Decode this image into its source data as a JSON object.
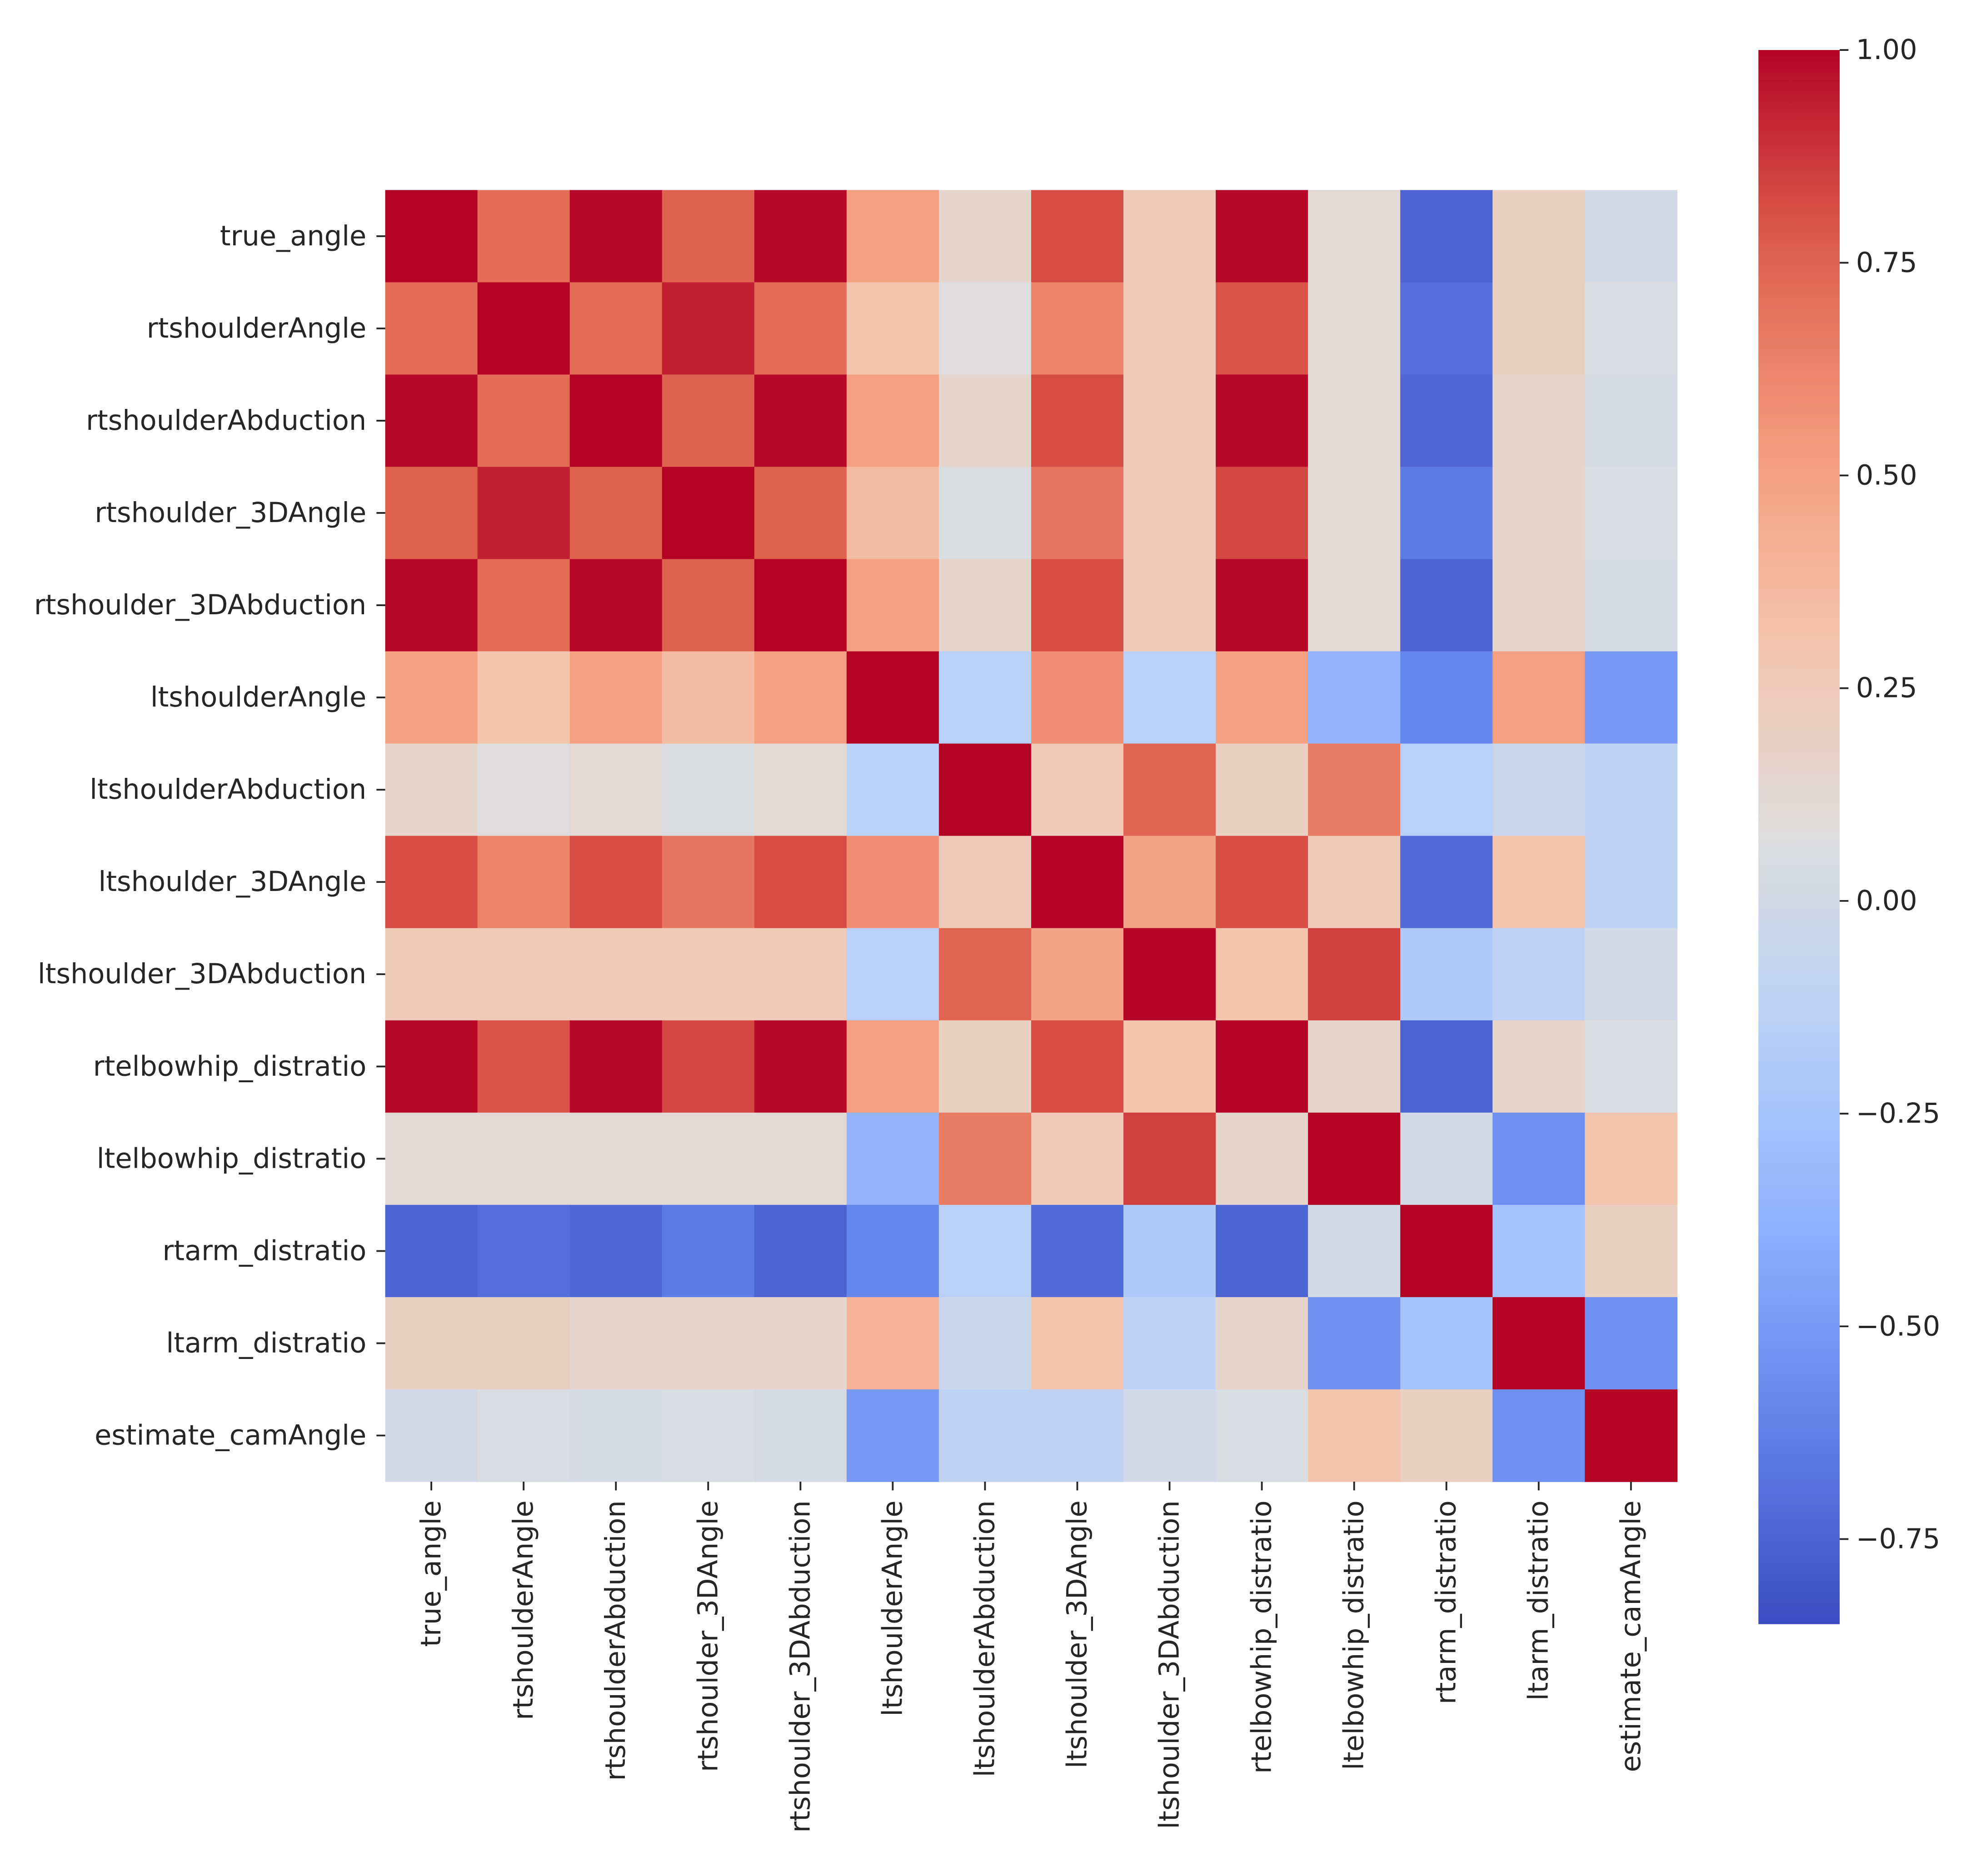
{
  "chart_data": {
    "type": "heatmap",
    "title": "",
    "xlabel": "",
    "ylabel": "",
    "colormap": "coolwarm",
    "variables": [
      "true_angle",
      "rtshoulderAngle",
      "rtshoulderAbduction",
      "rtshoulder_3DAngle",
      "rtshoulder_3DAbduction",
      "ltshoulderAngle",
      "ltshoulderAbduction",
      "ltshoulder_3DAngle",
      "ltshoulder_3DAbduction",
      "rtelbowhip_distratio",
      "ltelbowhip_distratio",
      "rtarm_distratio",
      "ltarm_distratio",
      "estimate_camAngle"
    ],
    "matrix": [
      [
        1.0,
        0.72,
        0.99,
        0.76,
        0.99,
        0.5,
        0.15,
        0.82,
        0.25,
        0.99,
        0.12,
        -0.75,
        0.2,
        0.0
      ],
      [
        0.72,
        1.0,
        0.72,
        0.93,
        0.72,
        0.3,
        0.08,
        0.63,
        0.25,
        0.8,
        0.12,
        -0.7,
        0.2,
        0.05
      ],
      [
        0.99,
        0.72,
        1.0,
        0.76,
        0.99,
        0.5,
        0.15,
        0.82,
        0.25,
        0.99,
        0.12,
        -0.73,
        0.15,
        0.03
      ],
      [
        0.76,
        0.93,
        0.76,
        1.0,
        0.76,
        0.35,
        0.06,
        0.68,
        0.25,
        0.83,
        0.12,
        -0.65,
        0.15,
        0.05
      ],
      [
        0.99,
        0.72,
        0.99,
        0.76,
        1.0,
        0.5,
        0.15,
        0.82,
        0.25,
        0.99,
        0.12,
        -0.75,
        0.15,
        0.03
      ],
      [
        0.5,
        0.3,
        0.5,
        0.35,
        0.5,
        1.0,
        -0.15,
        0.58,
        -0.15,
        0.5,
        -0.35,
        -0.6,
        0.5,
        -0.5
      ],
      [
        0.15,
        0.08,
        0.12,
        0.06,
        0.12,
        -0.15,
        1.0,
        0.25,
        0.75,
        0.2,
        0.66,
        -0.15,
        -0.05,
        -0.1
      ],
      [
        0.82,
        0.63,
        0.82,
        0.68,
        0.82,
        0.58,
        0.25,
        1.0,
        0.48,
        0.82,
        0.25,
        -0.72,
        0.3,
        -0.1
      ],
      [
        0.25,
        0.25,
        0.25,
        0.25,
        0.25,
        -0.15,
        0.75,
        0.48,
        1.0,
        0.3,
        0.85,
        -0.2,
        -0.12,
        0.0
      ],
      [
        0.99,
        0.8,
        0.99,
        0.83,
        0.99,
        0.5,
        0.2,
        0.82,
        0.3,
        1.0,
        0.15,
        -0.75,
        0.15,
        0.05
      ],
      [
        0.12,
        0.12,
        0.12,
        0.12,
        0.12,
        -0.35,
        0.66,
        0.25,
        0.85,
        0.15,
        1.0,
        0.0,
        -0.55,
        0.3
      ],
      [
        -0.75,
        -0.7,
        -0.73,
        -0.65,
        -0.75,
        -0.6,
        -0.15,
        -0.72,
        -0.2,
        -0.75,
        0.0,
        1.0,
        -0.25,
        0.2
      ],
      [
        0.2,
        0.2,
        0.15,
        0.15,
        0.15,
        0.4,
        -0.05,
        0.3,
        -0.12,
        0.15,
        -0.55,
        -0.25,
        1.0,
        -0.55
      ],
      [
        0.0,
        0.05,
        0.03,
        0.05,
        0.03,
        -0.5,
        -0.1,
        -0.1,
        0.0,
        0.05,
        0.3,
        0.2,
        -0.55,
        1.0
      ]
    ],
    "value_range": [
      -0.85,
      1.0
    ],
    "colorbar": {
      "ticks": [
        1.0,
        0.75,
        0.5,
        0.25,
        0.0,
        -0.25,
        -0.5,
        -0.75
      ],
      "tick_labels": [
        "1.00",
        "0.75",
        "0.50",
        "0.25",
        "0.00",
        "−0.25",
        "−0.50",
        "−0.75"
      ]
    },
    "grid": false,
    "legend": "colorbar-right"
  }
}
